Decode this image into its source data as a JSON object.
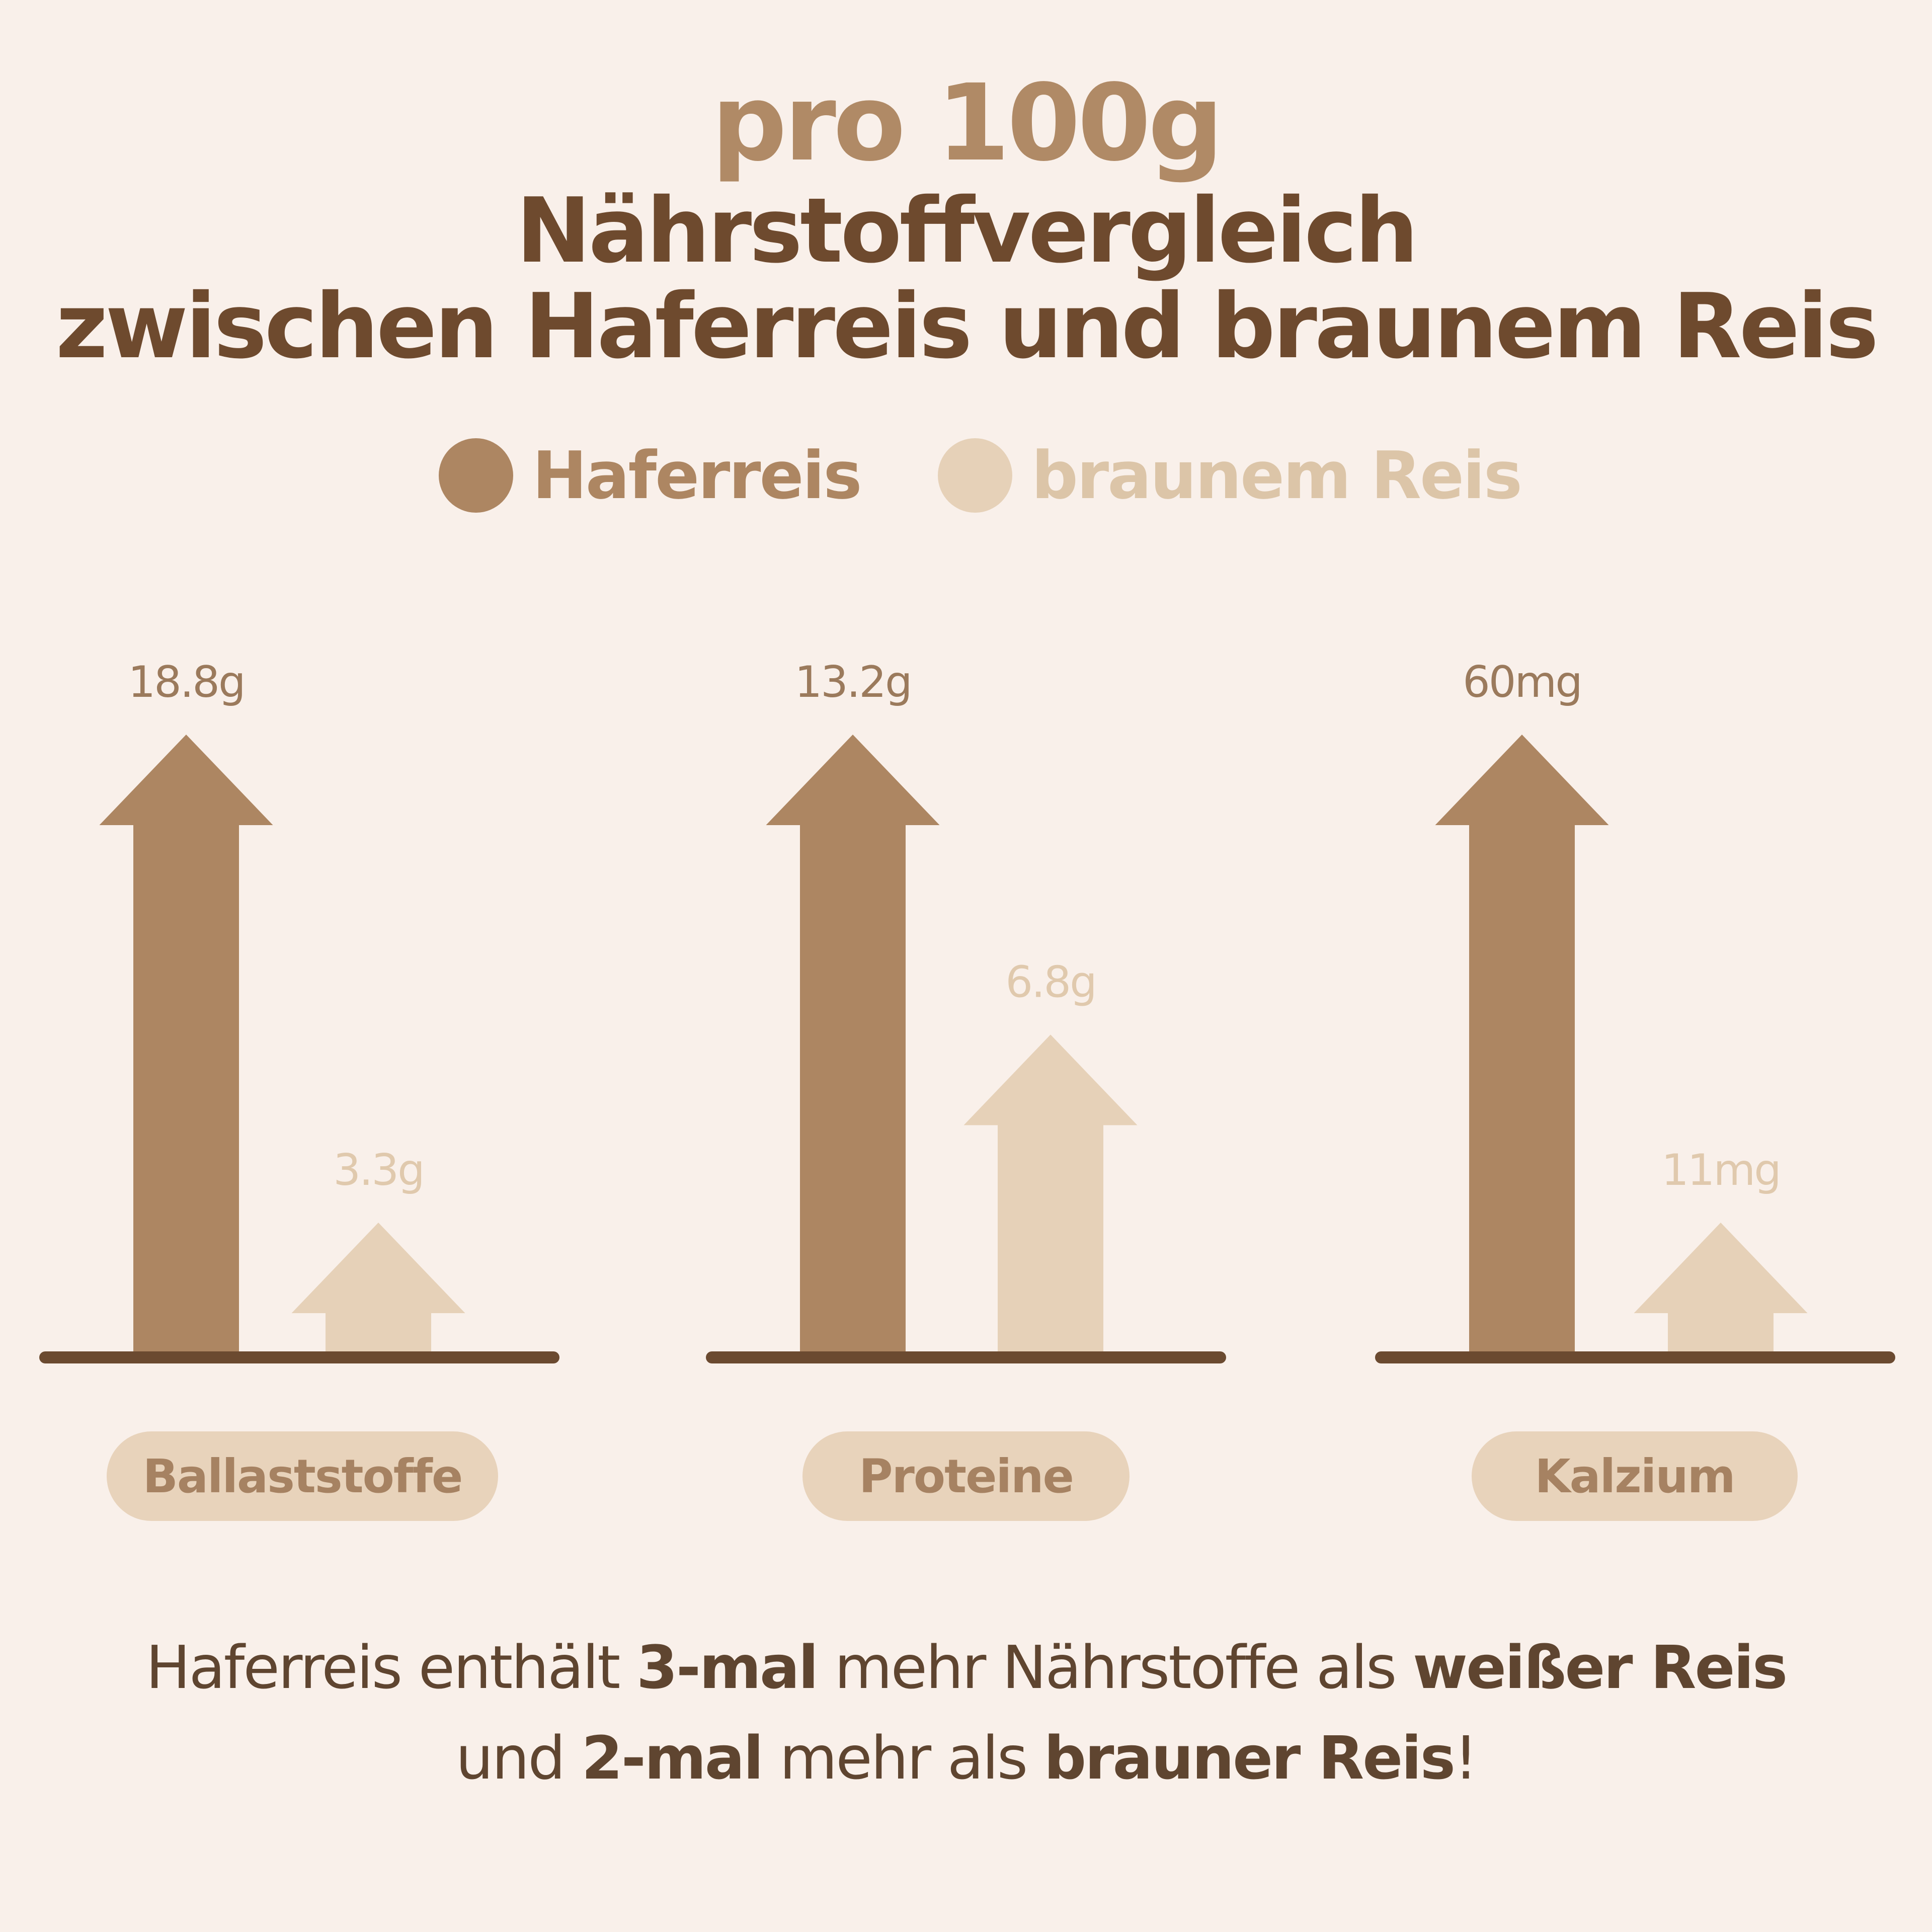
{
  "colors": {
    "background": "#f9f0ea",
    "accent_title": "#b08a66",
    "title_dark": "#6e4a2e",
    "haferreis": "#ad8662",
    "braunem_reis": "#e6d1b8",
    "baseline": "#6b4a30",
    "pill_bg": "#e8d3bb",
    "pill_text": "#a68262",
    "footer_text": "#5f4530"
  },
  "header": {
    "subtitle": "pro 100g",
    "title_line1": "Nährstoffvergleich",
    "title_line2": "zwischen Haferreis und braunem Reis"
  },
  "legend": {
    "items": [
      {
        "label": "Haferreis",
        "color": "#ad8662"
      },
      {
        "label": "braunem Reis",
        "color": "#e6d1b8"
      }
    ]
  },
  "chart_data": {
    "type": "bar",
    "marker": "arrow",
    "categories": [
      "Ballaststoffe",
      "Proteine",
      "Kalzium"
    ],
    "series": [
      {
        "name": "Haferreis",
        "values": [
          18.8,
          13.2,
          60
        ],
        "labels": [
          "18.8g",
          "13.2g",
          "60mg"
        ]
      },
      {
        "name": "braunem Reis",
        "values": [
          3.3,
          6.8,
          11
        ],
        "labels": [
          "3.3g",
          "6.8g",
          "11mg"
        ]
      }
    ]
  },
  "footer": {
    "line1_a": "Haferreis enthält ",
    "line1_b": "3-mal",
    "line1_c": " mehr Nährstoffe als ",
    "line1_d": "weißer Reis",
    "line2_a": "und ",
    "line2_b": "2-mal",
    "line2_c": " mehr als ",
    "line2_d": "brauner Reis",
    "line2_e": "!"
  }
}
